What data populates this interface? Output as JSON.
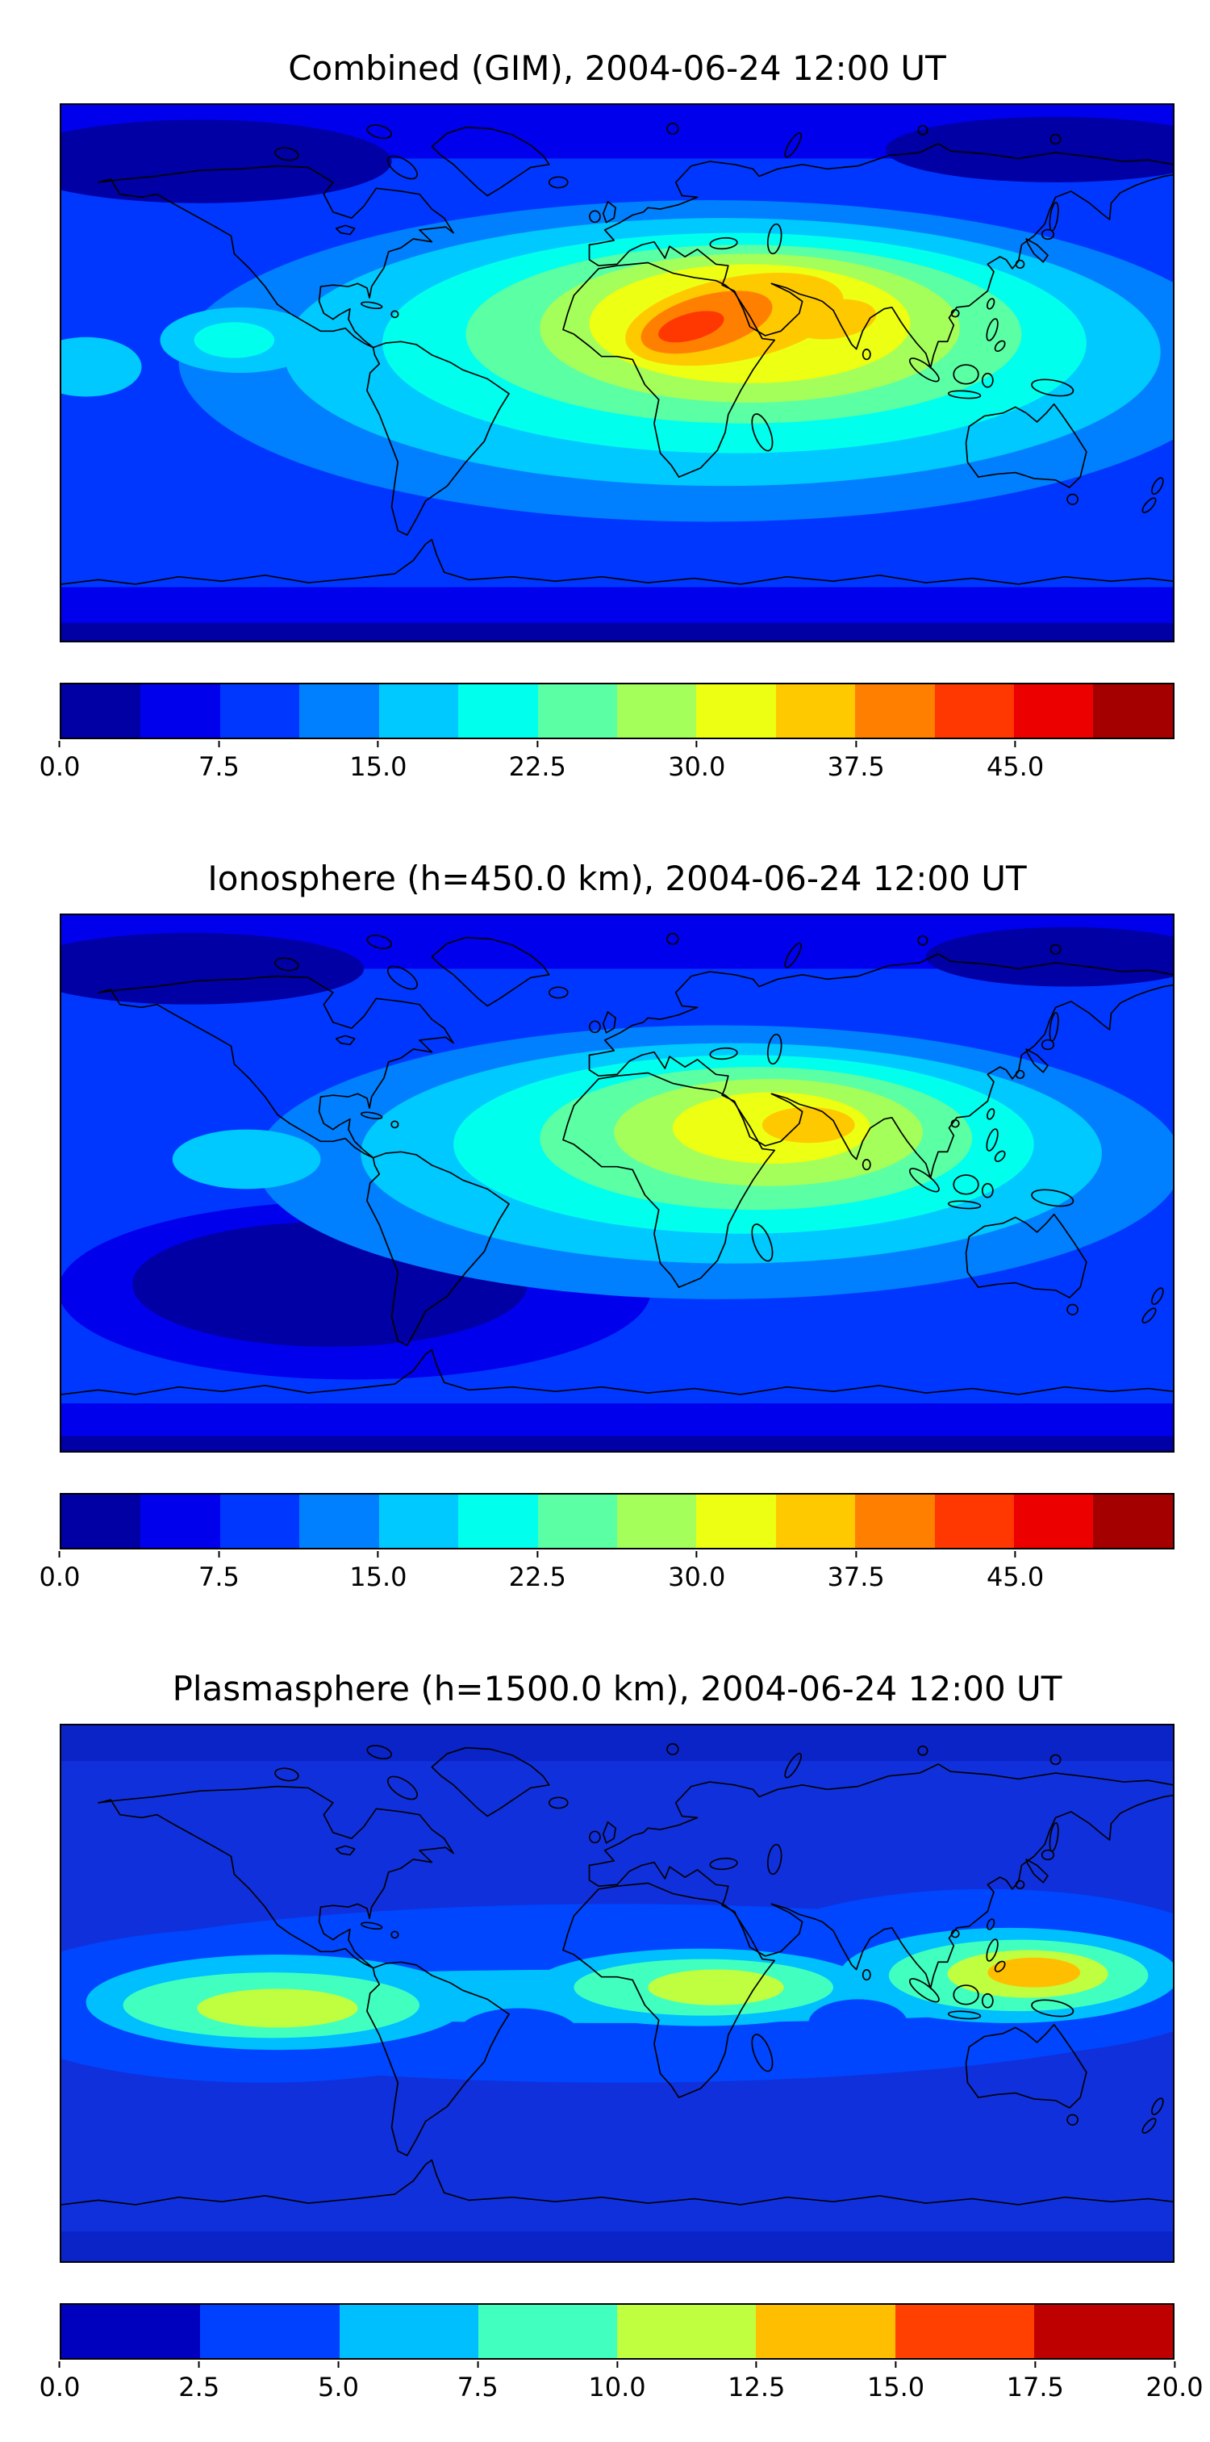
{
  "panels": [
    {
      "id": "combined",
      "title": "Combined (GIM), 2004-06-24 12:00 UT",
      "colorbar": {
        "max": 52.5,
        "colors": [
          "#0000a4",
          "#0000ed",
          "#0037ff",
          "#0080ff",
          "#00c9ff",
          "#00ffed",
          "#5bffa4",
          "#a4ff5b",
          "#edff12",
          "#ffc900",
          "#ff8000",
          "#ff3700",
          "#ed0000",
          "#a40000"
        ],
        "ticks": [
          {
            "value": 0,
            "label": "0.0"
          },
          {
            "value": 7.5,
            "label": "7.5"
          },
          {
            "value": 15,
            "label": "15.0"
          },
          {
            "value": 22.5,
            "label": "22.5"
          },
          {
            "value": 30,
            "label": "30.0"
          },
          {
            "value": 37.5,
            "label": "37.5"
          },
          {
            "value": 45,
            "label": "45.0"
          }
        ]
      }
    },
    {
      "id": "ionosphere",
      "title": "Ionosphere  (h=450.0 km), 2004-06-24 12:00 UT",
      "colorbar": {
        "max": 52.5,
        "colors": [
          "#0000a4",
          "#0000ed",
          "#0037ff",
          "#0080ff",
          "#00c9ff",
          "#00ffed",
          "#5bffa4",
          "#a4ff5b",
          "#edff12",
          "#ffc900",
          "#ff8000",
          "#ff3700",
          "#ed0000",
          "#a40000"
        ],
        "ticks": [
          {
            "value": 0,
            "label": "0.0"
          },
          {
            "value": 7.5,
            "label": "7.5"
          },
          {
            "value": 15,
            "label": "15.0"
          },
          {
            "value": 22.5,
            "label": "22.5"
          },
          {
            "value": 30,
            "label": "30.0"
          },
          {
            "value": 37.5,
            "label": "37.5"
          },
          {
            "value": 45,
            "label": "45.0"
          }
        ]
      }
    },
    {
      "id": "plasmasphere",
      "title": "Plasmasphere (h=1500.0 km), 2004-06-24 12:00 UT",
      "colorbar": {
        "max": 20,
        "colors": [
          "#0000bf",
          "#0040ff",
          "#00bfff",
          "#40ffbf",
          "#bfff40",
          "#ffbf00",
          "#ff4000",
          "#bf0000"
        ],
        "ticks": [
          {
            "value": 0,
            "label": "0.0"
          },
          {
            "value": 2.5,
            "label": "2.5"
          },
          {
            "value": 5,
            "label": "5.0"
          },
          {
            "value": 7.5,
            "label": "7.5"
          },
          {
            "value": 10,
            "label": "10.0"
          },
          {
            "value": 12.5,
            "label": "12.5"
          },
          {
            "value": 15,
            "label": "15.0"
          },
          {
            "value": 17.5,
            "label": "17.5"
          },
          {
            "value": 20,
            "label": "20.0"
          }
        ]
      }
    }
  ],
  "chart_data": [
    {
      "type": "heatmap",
      "title": "Combined (GIM), 2004-06-24 12:00 UT",
      "colormap": "jet (discrete filled-contour bands)",
      "projection": "equirectangular world map, lon -180..180 left-to-right, lat 90..-90 top-to-bottom",
      "legend_position": "horizontal colorbar below map",
      "colorbar_ticks": [
        0.0,
        7.5,
        15.0,
        22.5,
        30.0,
        37.5,
        45.0
      ],
      "value_range": [
        0,
        52.5
      ],
      "features": [
        {
          "region": "peak over North/West Africa (~lon 10E, lat 17N)",
          "value": 46
        },
        {
          "region": "secondary ridge over Arabia and India (~lon 70E, lat 15N)",
          "value": 38
        },
        {
          "region": "broad equatorial/low-latitude enhancement band across Africa and Indian Ocean",
          "value": 25
        },
        {
          "region": "light spot in eastern Pacific west of Central America",
          "value": 19
        },
        {
          "region": "mid-latitude ocean background",
          "value": 10
        },
        {
          "region": "polar regions (minimum)",
          "value": 4
        }
      ]
    },
    {
      "type": "heatmap",
      "title": "Ionosphere  (h=450.0 km), 2004-06-24 12:00 UT",
      "colormap": "jet (discrete filled-contour bands)",
      "projection": "equirectangular world map, lon -180..180 left-to-right, lat 90..-90 top-to-bottom",
      "legend_position": "horizontal colorbar below map",
      "colorbar_ticks": [
        0.0,
        7.5,
        15.0,
        22.5,
        30.0,
        37.5,
        45.0
      ],
      "value_range": [
        0,
        52.5
      ],
      "features": [
        {
          "region": "peak over Arabia / Arabian Sea / NW India (~lon 60E, lat 18N)",
          "value": 34
        },
        {
          "region": "green-yellow enhancement over central Africa to India",
          "value": 26
        },
        {
          "region": "cyan band over Europe, Africa, Indian Ocean",
          "value": 17
        },
        {
          "region": "dark minimum over South Pacific / southern South America / South Atlantic",
          "value": 4
        },
        {
          "region": "mid-latitude ocean background",
          "value": 9
        },
        {
          "region": "polar regions",
          "value": 4
        }
      ]
    },
    {
      "type": "heatmap",
      "title": "Plasmasphere (h=1500.0 km), 2004-06-24 12:00 UT",
      "colormap": "jet (discrete filled-contour bands)",
      "projection": "equirectangular world map, lon -180..180 left-to-right, lat 90..-90 top-to-bottom",
      "legend_position": "horizontal colorbar below map",
      "colorbar_ticks": [
        0.0,
        2.5,
        5.0,
        7.5,
        10.0,
        12.5,
        15.0,
        17.5,
        20.0
      ],
      "value_range": [
        0,
        20
      ],
      "features": [
        {
          "region": "peak over western Pacific / Philippine Sea (~lon 130E, lat 8N)",
          "value": 16
        },
        {
          "region": "green-yellow patch over central Africa (~lon 30E, lat 2N)",
          "value": 12
        },
        {
          "region": "green-yellow patch over eastern Pacific / South America (~lon 110W, lat 5S)",
          "value": 12
        },
        {
          "region": "continuous aquamarine band along geomagnetic equator",
          "value": 9
        },
        {
          "region": "royal-blue background at mid and high latitudes",
          "value": 4
        }
      ]
    }
  ]
}
